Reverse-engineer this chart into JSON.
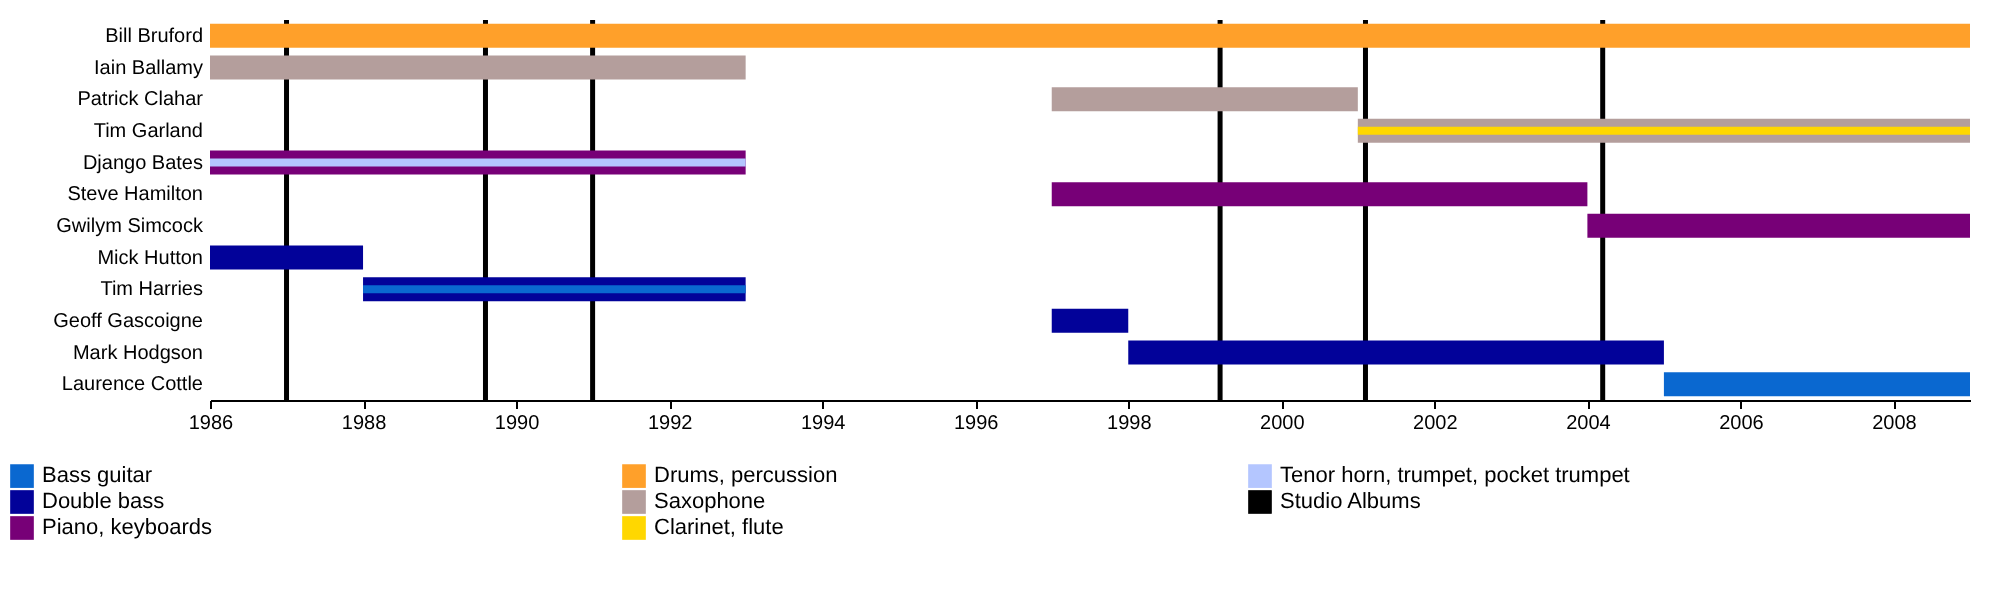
{
  "chart_data": {
    "type": "bar",
    "orientation": "horizontal",
    "categories": [
      "Bill Bruford",
      "Iain Ballamy",
      "Patrick Clahar",
      "Tim Garland",
      "Django Bates",
      "Steve Hamilton",
      "Gwilym Simcock",
      "Mick Hutton",
      "Tim Harries",
      "Geoff Gascoigne",
      "Mark Hodgson",
      "Laurence Cottle"
    ],
    "series": [
      {
        "name": "Drums, percussion",
        "color": "#ffa02a",
        "base": [
          1986,
          null,
          null,
          null,
          null,
          null,
          null,
          null,
          null,
          null,
          null,
          null
        ],
        "values": [
          23,
          null,
          null,
          null,
          null,
          null,
          null,
          null,
          null,
          null,
          null,
          null
        ]
      },
      {
        "name": "Saxophone",
        "color": "#b49e9c",
        "base": [
          null,
          1986,
          1997,
          2001,
          null,
          null,
          null,
          null,
          null,
          null,
          null,
          null
        ],
        "values": [
          null,
          7,
          4,
          8,
          null,
          null,
          null,
          null,
          null,
          null,
          null,
          null
        ]
      },
      {
        "name": "Piano, keyboards",
        "color": "#770077",
        "base": [
          null,
          null,
          null,
          null,
          1986,
          1997,
          2004,
          null,
          null,
          null,
          null,
          null
        ],
        "values": [
          null,
          null,
          null,
          null,
          7,
          7,
          5,
          null,
          null,
          null,
          null,
          null
        ]
      },
      {
        "name": "Double bass",
        "color": "#020299",
        "base": [
          null,
          null,
          null,
          null,
          null,
          null,
          null,
          1986,
          1988,
          1997,
          1998,
          null
        ],
        "values": [
          null,
          null,
          null,
          null,
          null,
          null,
          null,
          2,
          5,
          1,
          7,
          null
        ]
      },
      {
        "name": "Bass guitar",
        "color": "#0a68d0",
        "base": [
          null,
          null,
          null,
          null,
          null,
          null,
          null,
          null,
          1988,
          null,
          null,
          2005
        ],
        "values": [
          null,
          null,
          null,
          null,
          null,
          null,
          null,
          null,
          5,
          null,
          null,
          4
        ]
      },
      {
        "name": "Clarinet, flute",
        "color": "#ffd700",
        "base": [
          null,
          null,
          null,
          2001,
          null,
          null,
          null,
          null,
          null,
          null,
          null,
          null
        ],
        "values": [
          null,
          null,
          null,
          8,
          null,
          null,
          null,
          null,
          null,
          null,
          null,
          null
        ]
      },
      {
        "name": "Tenor horn, trumpet, pocket trumpet",
        "color": "#b4c6ff",
        "base": [
          null,
          null,
          null,
          null,
          1986,
          null,
          null,
          null,
          null,
          null,
          null,
          null
        ],
        "values": [
          null,
          null,
          null,
          null,
          7,
          null,
          null,
          null,
          null,
          null,
          null,
          null
        ]
      }
    ],
    "ref_lines": [
      {
        "axis": "x",
        "value": 1987.0,
        "label": "Studio Albums",
        "color": "#000000"
      },
      {
        "axis": "x",
        "value": 1989.6,
        "label": null,
        "color": "#000000"
      },
      {
        "axis": "x",
        "value": 1991.0,
        "label": null,
        "color": "#000000"
      },
      {
        "axis": "x",
        "value": 1999.2,
        "label": null,
        "color": "#000000"
      },
      {
        "axis": "x",
        "value": 2001.1,
        "label": null,
        "color": "#000000"
      },
      {
        "axis": "x",
        "value": 2004.2,
        "label": null,
        "color": "#000000"
      }
    ],
    "xlim": [
      1986,
      2009
    ],
    "xticks": [
      1986,
      1988,
      1990,
      1992,
      1994,
      1996,
      1998,
      2000,
      2002,
      2004,
      2006,
      2008
    ],
    "legend": "bottom"
  }
}
